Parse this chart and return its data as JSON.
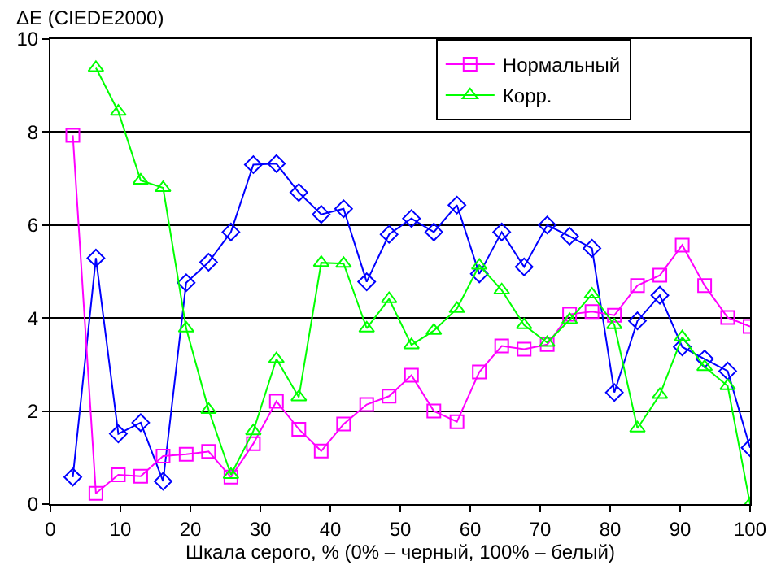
{
  "chart_data": {
    "type": "line",
    "ylabel": "ΔE (CIEDE2000)",
    "xlabel": "Шкала серого, % (0% – черный, 100% – белый)",
    "x": [
      3.2,
      6.5,
      9.7,
      12.9,
      16.1,
      19.4,
      22.6,
      25.8,
      29.0,
      32.3,
      35.5,
      38.7,
      41.9,
      45.2,
      48.4,
      51.6,
      54.8,
      58.1,
      61.3,
      64.5,
      67.7,
      71.0,
      74.2,
      77.4,
      80.6,
      83.9,
      87.1,
      90.3,
      93.5,
      96.8,
      100
    ],
    "xlim": [
      0,
      100
    ],
    "xticks": [
      0,
      10,
      20,
      30,
      40,
      50,
      60,
      70,
      80,
      90,
      100
    ],
    "ylim": [
      0,
      10
    ],
    "yticks": [
      0,
      2,
      4,
      6,
      8,
      10
    ],
    "grid": "y",
    "legend": "top right",
    "series": [
      {
        "color": "#0000ff",
        "marker": "diamond",
        "values": [
          0.58,
          5.29,
          1.51,
          1.75,
          0.49,
          4.76,
          5.2,
          5.85,
          7.3,
          7.32,
          6.7,
          6.23,
          6.35,
          4.78,
          5.8,
          6.14,
          5.85,
          6.43,
          4.95,
          5.85,
          5.1,
          6.0,
          5.76,
          5.5,
          2.4,
          3.94,
          4.49,
          3.38,
          3.12,
          2.86,
          1.21
        ]
      },
      {
        "name": "Нормальный",
        "color": "#ff00ff",
        "marker": "square",
        "values": [
          7.93,
          0.23,
          0.63,
          0.6,
          1.03,
          1.07,
          1.13,
          0.58,
          1.3,
          2.21,
          1.61,
          1.14,
          1.72,
          2.14,
          2.32,
          2.77,
          2.0,
          1.77,
          2.84,
          3.4,
          3.33,
          3.43,
          4.08,
          4.14,
          4.06,
          4.7,
          4.92,
          5.57,
          4.7,
          4.01,
          3.82
        ]
      },
      {
        "name": "Корр.",
        "color": "#00ff00",
        "marker": "triangle",
        "values": [
          null,
          9.38,
          8.44,
          6.96,
          6.8,
          3.78,
          2.03,
          0.63,
          1.57,
          3.12,
          2.3,
          5.19,
          5.17,
          3.78,
          4.41,
          3.42,
          3.73,
          4.2,
          5.13,
          4.6,
          3.85,
          3.47,
          3.96,
          4.51,
          3.85,
          1.63,
          2.35,
          3.59,
          2.95,
          2.54,
          0
        ]
      }
    ]
  }
}
